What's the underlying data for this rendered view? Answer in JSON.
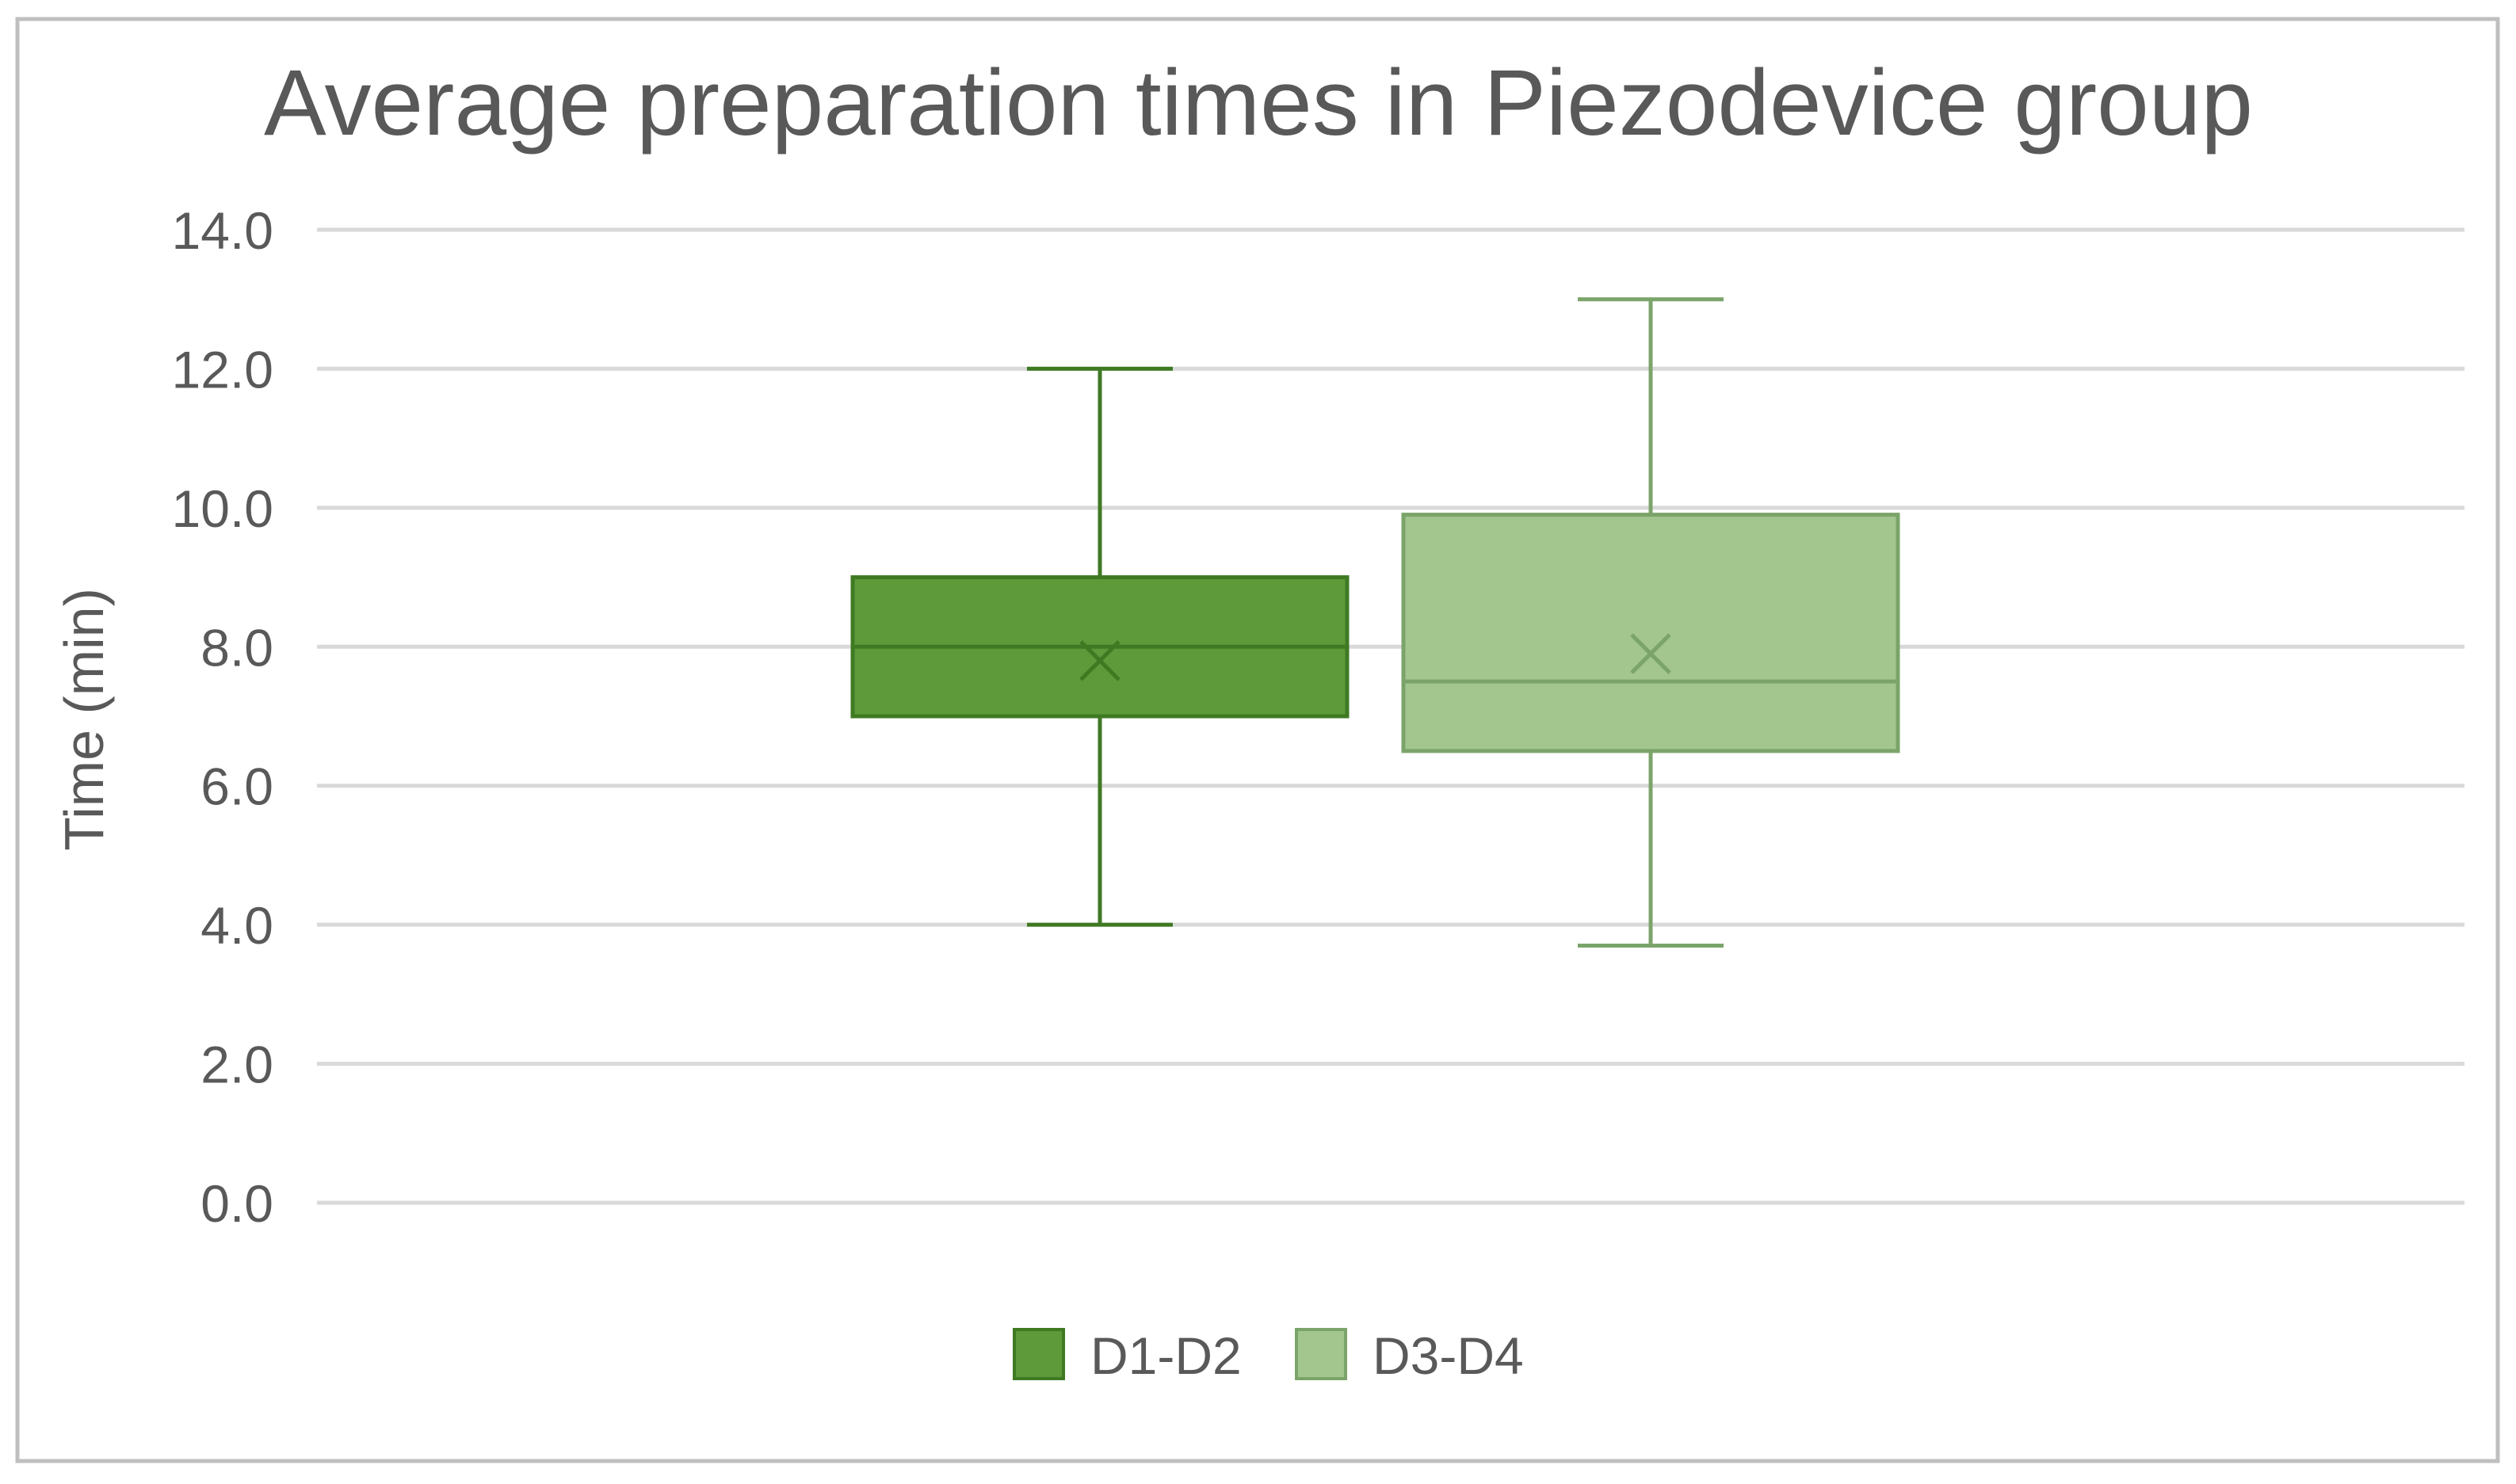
{
  "chart_data": {
    "type": "box",
    "title": "Average preparation times in Piezodevice group",
    "ylabel": "Time (min)",
    "xlabel": "",
    "ylim": [
      0,
      14
    ],
    "ytick_step": 2,
    "ytick_labels": [
      "0.0",
      "2.0",
      "4.0",
      "6.0",
      "8.0",
      "10.0",
      "12.0",
      "14.0"
    ],
    "grid": true,
    "legend_position": "bottom",
    "series": [
      {
        "name": "D1-D2",
        "color": "#5e9a39",
        "stroke": "#3f7a23",
        "min": 4.0,
        "q1": 7.0,
        "median": 8.0,
        "q3": 9.0,
        "max": 12.0,
        "mean": 7.8
      },
      {
        "name": "D3-D4",
        "color": "#a2c68e",
        "stroke": "#7ba46a",
        "min": 3.7,
        "q1": 6.5,
        "median": 7.5,
        "q3": 9.9,
        "max": 13.0,
        "mean": 7.9
      }
    ]
  },
  "colors": {
    "frame": "#bfbfbf",
    "grid": "#d9d9d9",
    "text": "#595959",
    "title": "#595959"
  }
}
